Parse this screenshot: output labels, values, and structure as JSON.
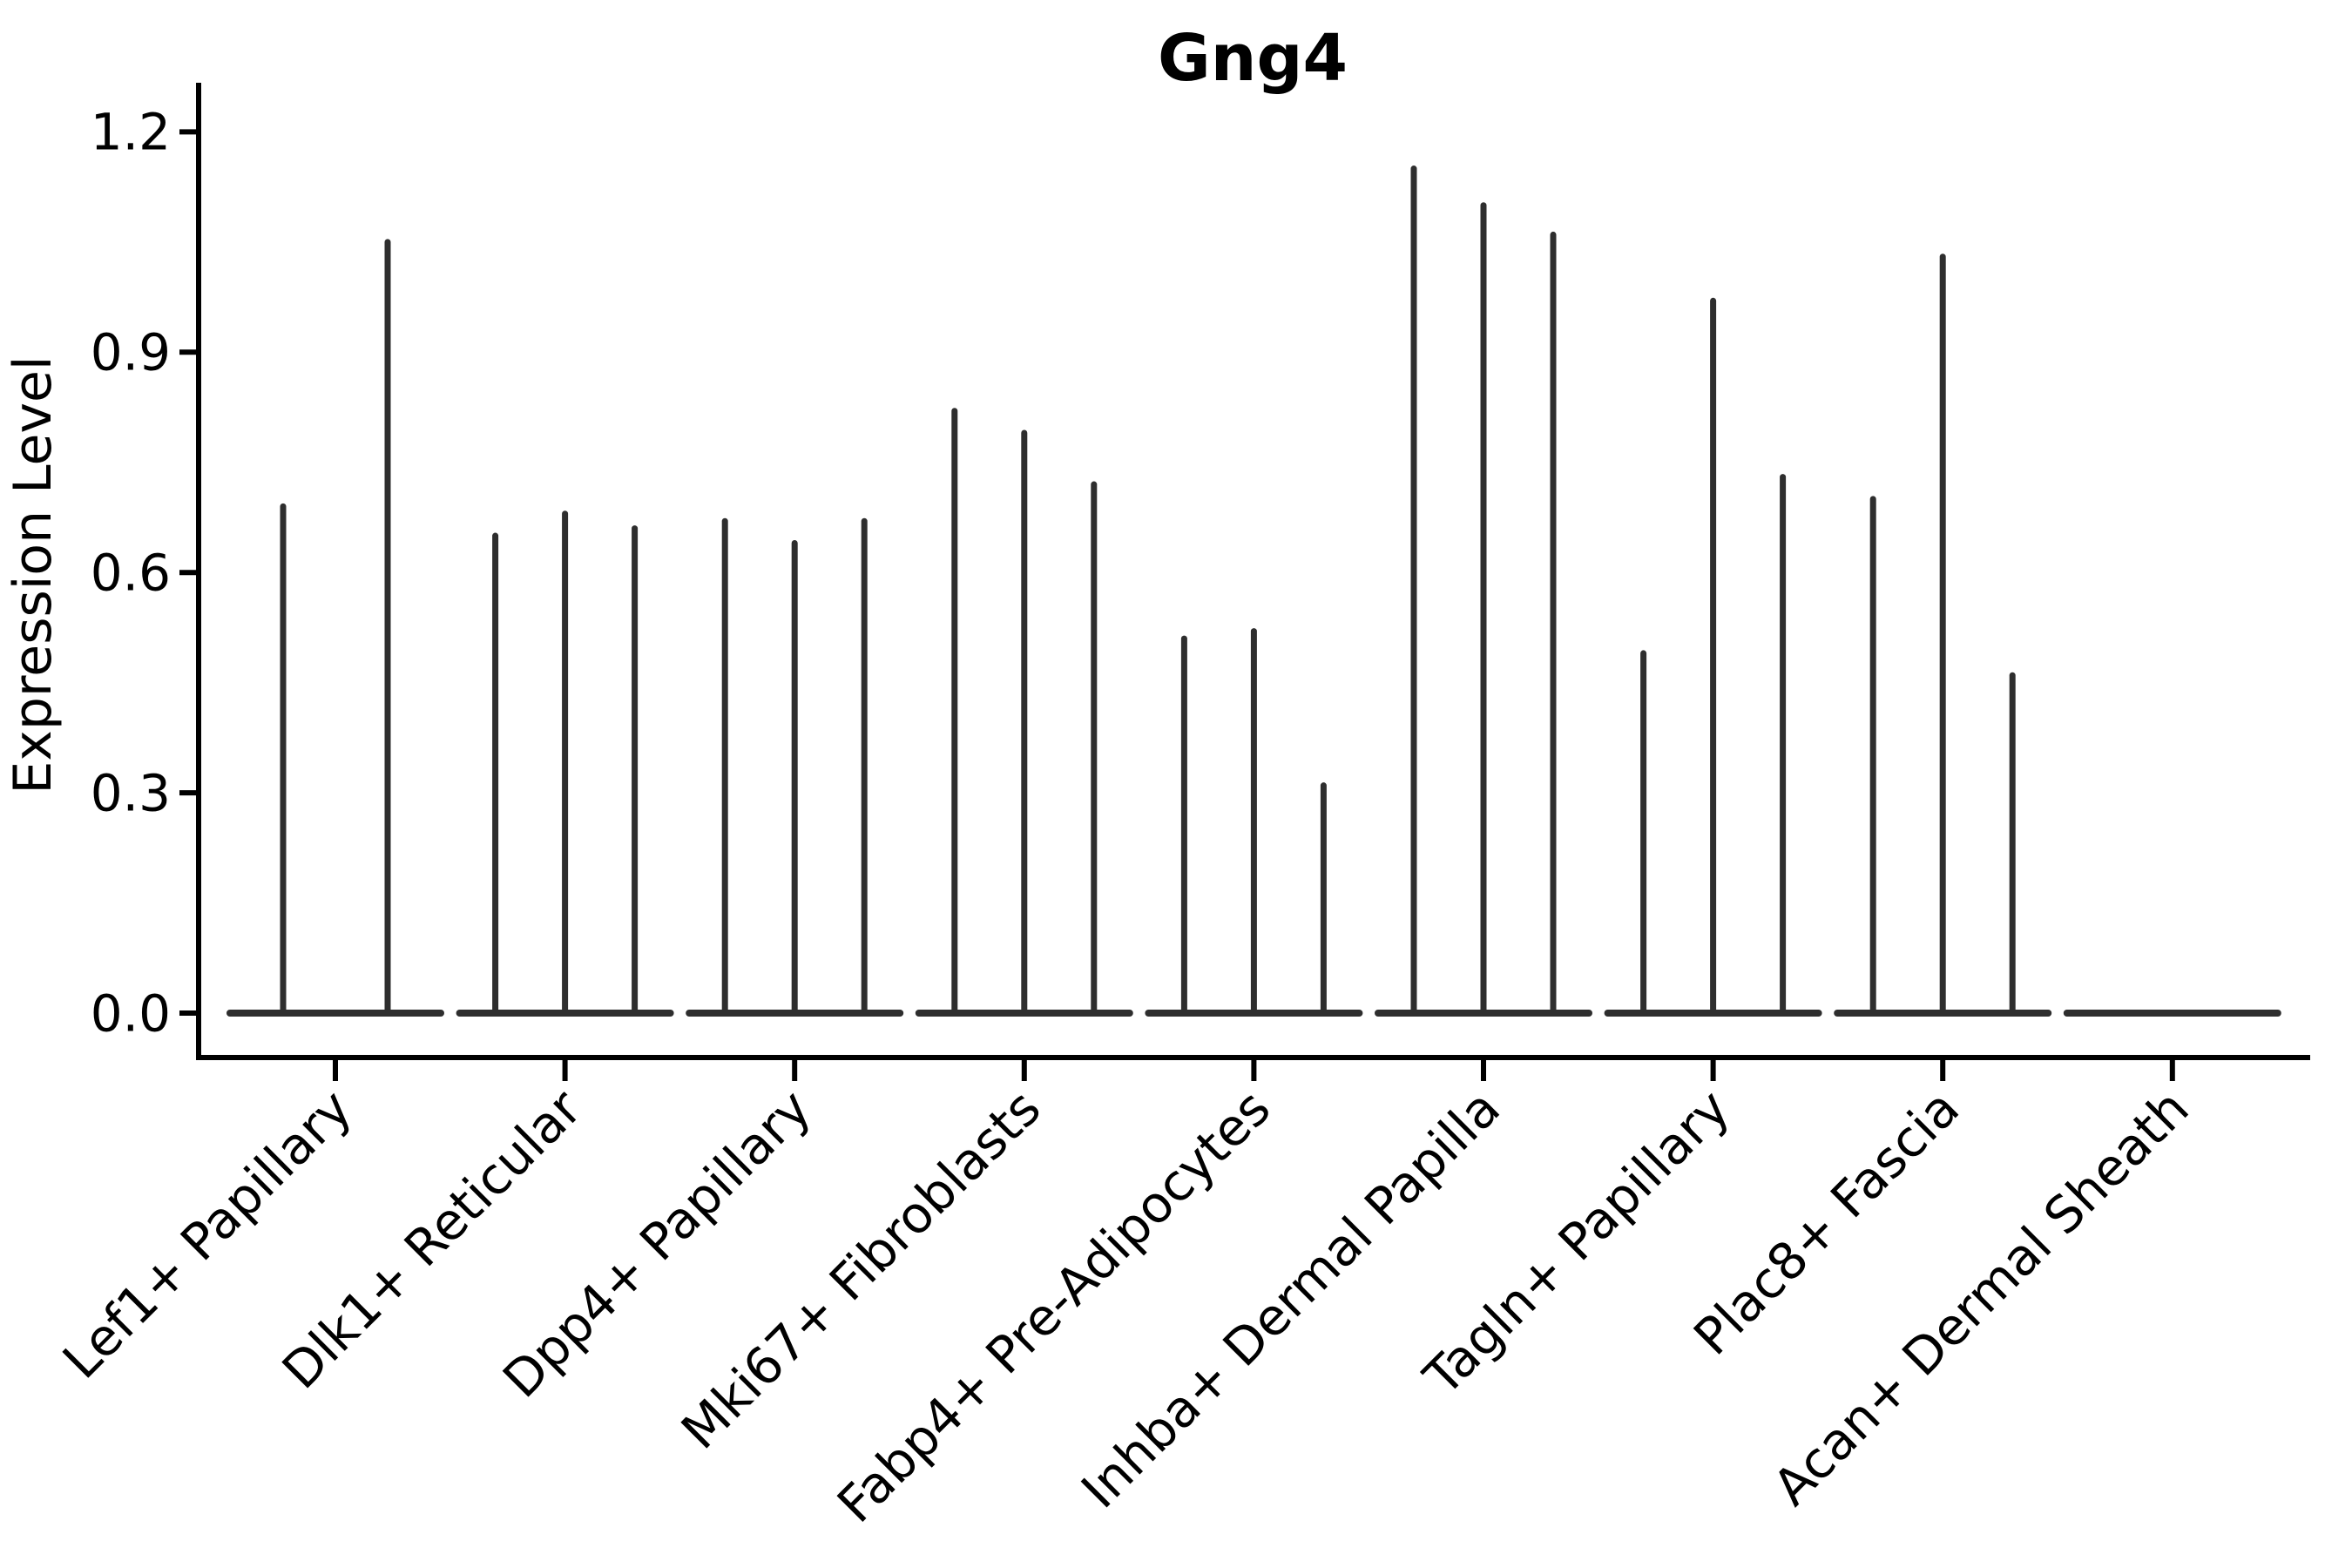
{
  "title": "Gng4",
  "ylabel": "Expression Level",
  "chart_data": {
    "type": "violin",
    "title": "Gng4",
    "xlabel": "",
    "ylabel": "Expression Level",
    "grid": false,
    "legend": null,
    "yticks": [
      0.0,
      0.3,
      0.6,
      0.9,
      1.2
    ],
    "ytick_labels": [
      "0.0",
      "0.3",
      "0.6",
      "0.9",
      "1.2"
    ],
    "ylim": [
      -0.06,
      1.26
    ],
    "note": "Thin violins: nearly all density at 0 (flat base), thin tail up to max expression per violin; Acan+ Dermal Sheath is entirely 0",
    "categories": [
      "Lef1+ Papillary",
      "Dlk1+ Reticular",
      "Dpp4+ Papillary",
      "Mki67+ Fibroblasts",
      "Fabp4+ Pre-Adipocytes",
      "Inhba+ Dermal Papilla",
      "Tagln+ Papillary",
      "Plac8+ Fascia",
      "Acan+ Dermal Sheath"
    ],
    "groups": [
      {
        "label": "Lef1+ Papillary",
        "violin_baseline": 0,
        "violin_max_values": [
          0.69,
          1.05
        ]
      },
      {
        "label": "Dlk1+ Reticular",
        "violin_baseline": 0,
        "violin_max_values": [
          0.65,
          0.68,
          0.66
        ]
      },
      {
        "label": "Dpp4+ Papillary",
        "violin_baseline": 0,
        "violin_max_values": [
          0.67,
          0.64,
          0.67
        ]
      },
      {
        "label": "Mki67+ Fibroblasts",
        "violin_baseline": 0,
        "violin_max_values": [
          0.82,
          0.79,
          0.72
        ]
      },
      {
        "label": "Fabp4+ Pre-Adipocytes",
        "violin_baseline": 0,
        "violin_max_values": [
          0.51,
          0.52,
          0.31
        ]
      },
      {
        "label": "Inhba+ Dermal Papilla",
        "violin_baseline": 0,
        "violin_max_values": [
          1.15,
          1.1,
          1.06
        ]
      },
      {
        "label": "Tagln+ Papillary",
        "violin_baseline": 0,
        "violin_max_values": [
          0.49,
          0.97,
          0.73
        ]
      },
      {
        "label": "Plac8+ Fascia",
        "violin_baseline": 0,
        "violin_max_values": [
          0.7,
          1.03,
          0.46
        ]
      },
      {
        "label": "Acan+ Dermal Sheath",
        "violin_baseline": 0,
        "violin_max_values": []
      }
    ],
    "colors": {
      "violin": "#2e2e2e",
      "axis": "#000000",
      "text": "#000000",
      "background": "#ffffff"
    }
  }
}
